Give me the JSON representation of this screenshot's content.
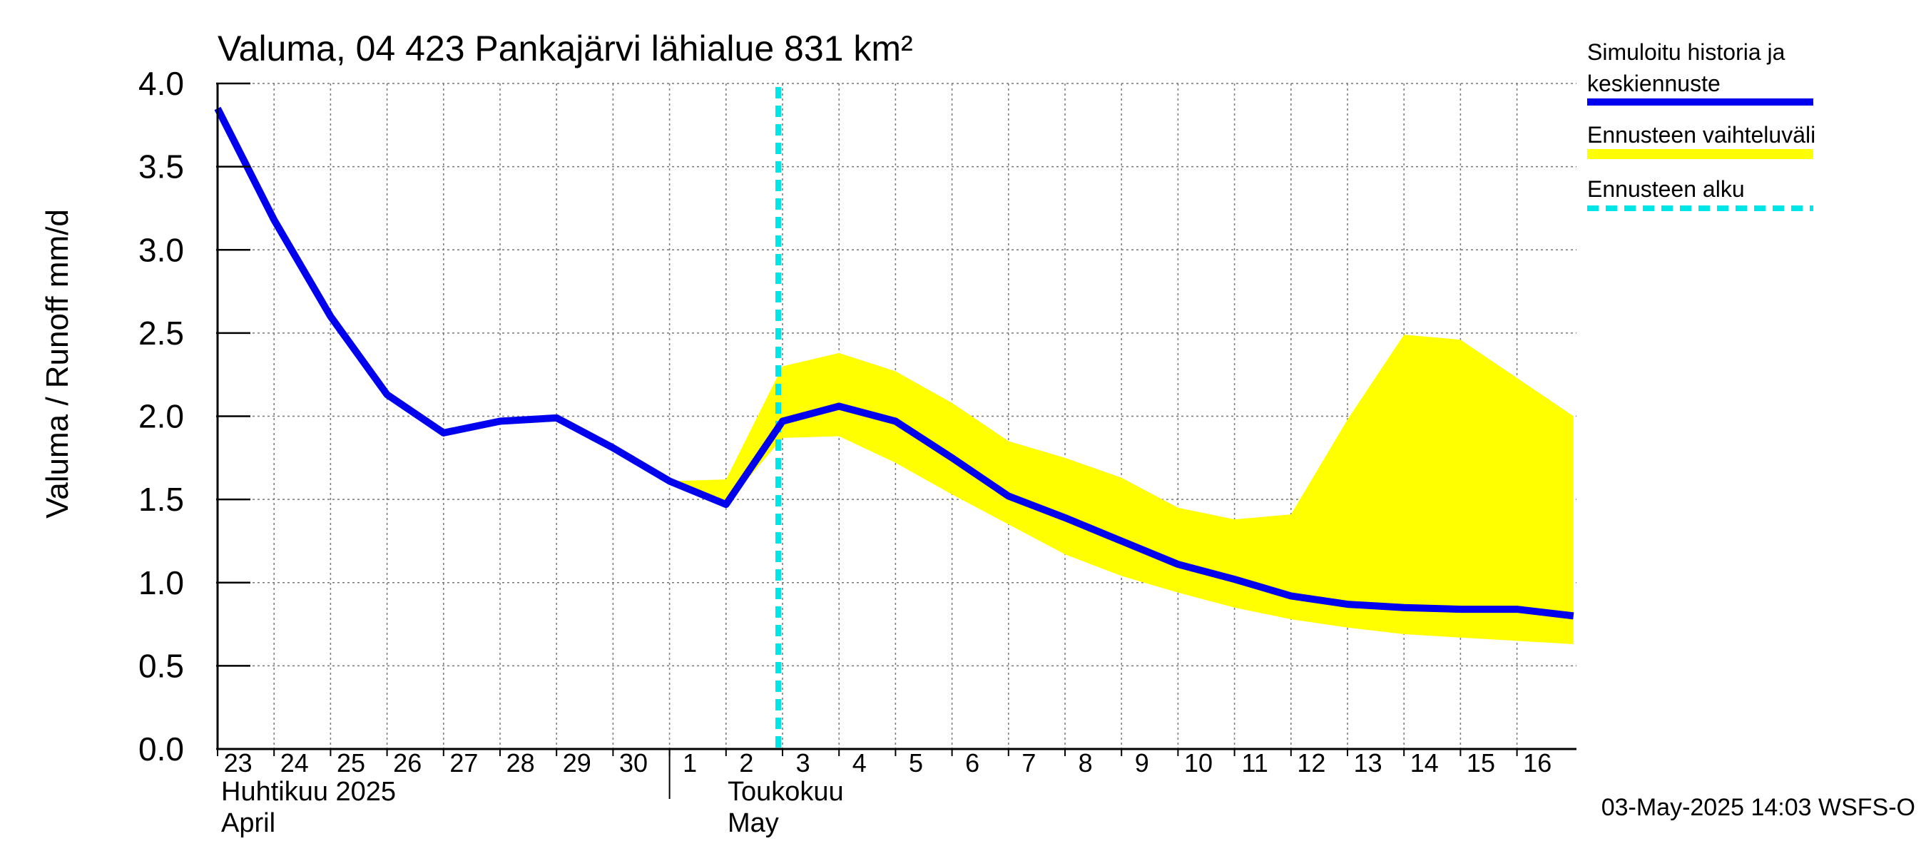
{
  "chart_data": {
    "type": "line",
    "title": "Valuma, 04 423 Pankajärvi lähialue 831 km²",
    "ylabel": "Valuma / Runoff    mm/d",
    "ylim": [
      0,
      4
    ],
    "yticks": [
      "0.0",
      "0.5",
      "1.0",
      "1.5",
      "2.0",
      "2.5",
      "3.0",
      "3.5",
      "4.0"
    ],
    "ytick_values": [
      0,
      0.5,
      1.0,
      1.5,
      2.0,
      2.5,
      3.0,
      3.5,
      4.0
    ],
    "x_day_labels": [
      "23",
      "24",
      "25",
      "26",
      "27",
      "28",
      "29",
      "30",
      "1",
      "2",
      "3",
      "4",
      "5",
      "6",
      "7",
      "8",
      "9",
      "10",
      "11",
      "12",
      "13",
      "14",
      "15",
      "16"
    ],
    "x_dates": [
      "2025-04-23",
      "2025-04-24",
      "2025-04-25",
      "2025-04-26",
      "2025-04-27",
      "2025-04-28",
      "2025-04-29",
      "2025-04-30",
      "2025-05-01",
      "2025-05-02",
      "2025-05-03",
      "2025-05-04",
      "2025-05-05",
      "2025-05-06",
      "2025-05-07",
      "2025-05-08",
      "2025-05-09",
      "2025-05-10",
      "2025-05-11",
      "2025-05-12",
      "2025-05-13",
      "2025-05-14",
      "2025-05-15",
      "2025-05-16"
    ],
    "month_labels": [
      {
        "fi": "Huhtikuu  2025",
        "en": "April"
      },
      {
        "fi": "Toukokuu",
        "en": "May"
      }
    ],
    "grid": true,
    "legend_position": "right",
    "series": [
      {
        "name": "Simuloitu historia ja keskiennuste",
        "color": "#0000ee",
        "x": [
          "2025-04-23",
          "2025-04-24",
          "2025-04-25",
          "2025-04-26",
          "2025-04-27",
          "2025-04-28",
          "2025-04-29",
          "2025-04-30",
          "2025-05-01",
          "2025-05-02",
          "2025-05-03",
          "2025-05-04",
          "2025-05-05",
          "2025-05-06",
          "2025-05-07",
          "2025-05-08",
          "2025-05-09",
          "2025-05-10",
          "2025-05-11",
          "2025-05-12",
          "2025-05-13",
          "2025-05-14",
          "2025-05-15",
          "2025-05-16",
          "2025-05-17"
        ],
        "values": [
          3.85,
          3.18,
          2.6,
          2.13,
          1.9,
          1.97,
          1.99,
          1.81,
          1.61,
          1.47,
          1.97,
          2.06,
          1.97,
          1.75,
          1.52,
          1.39,
          1.25,
          1.11,
          1.02,
          0.92,
          0.87,
          0.85,
          0.84,
          0.84,
          0.8
        ]
      }
    ],
    "band": {
      "name": "Ennusteen vaihteluväli",
      "color": "#ffff00",
      "x": [
        "2025-05-01",
        "2025-05-02",
        "2025-05-03",
        "2025-05-04",
        "2025-05-05",
        "2025-05-06",
        "2025-05-07",
        "2025-05-08",
        "2025-05-09",
        "2025-05-10",
        "2025-05-11",
        "2025-05-12",
        "2025-05-13",
        "2025-05-14",
        "2025-05-15",
        "2025-05-16",
        "2025-05-17"
      ],
      "upper": [
        1.61,
        1.62,
        2.3,
        2.38,
        2.27,
        2.08,
        1.85,
        1.75,
        1.63,
        1.45,
        1.38,
        1.41,
        1.98,
        2.49,
        2.46,
        2.23,
        2.0
      ],
      "lower": [
        1.61,
        1.47,
        1.87,
        1.88,
        1.72,
        1.53,
        1.35,
        1.17,
        1.04,
        0.94,
        0.85,
        0.78,
        0.73,
        0.69,
        0.67,
        0.65,
        0.63
      ]
    },
    "forecast_start": {
      "name": "Ennusteen alku",
      "color": "#00e5e5",
      "x": "2025-05-03"
    }
  },
  "legend": [
    {
      "label_lines": [
        "Simuloitu historia ja",
        "keskiennuste"
      ],
      "color": "#0000ee",
      "style": "solid"
    },
    {
      "label_lines": [
        "Ennusteen vaihteluväli"
      ],
      "color": "#ffff00",
      "style": "solid"
    },
    {
      "label_lines": [
        "Ennusteen alku"
      ],
      "color": "#00e5e5",
      "style": "dashed"
    }
  ],
  "footer": "03-May-2025 14:03 WSFS-O"
}
